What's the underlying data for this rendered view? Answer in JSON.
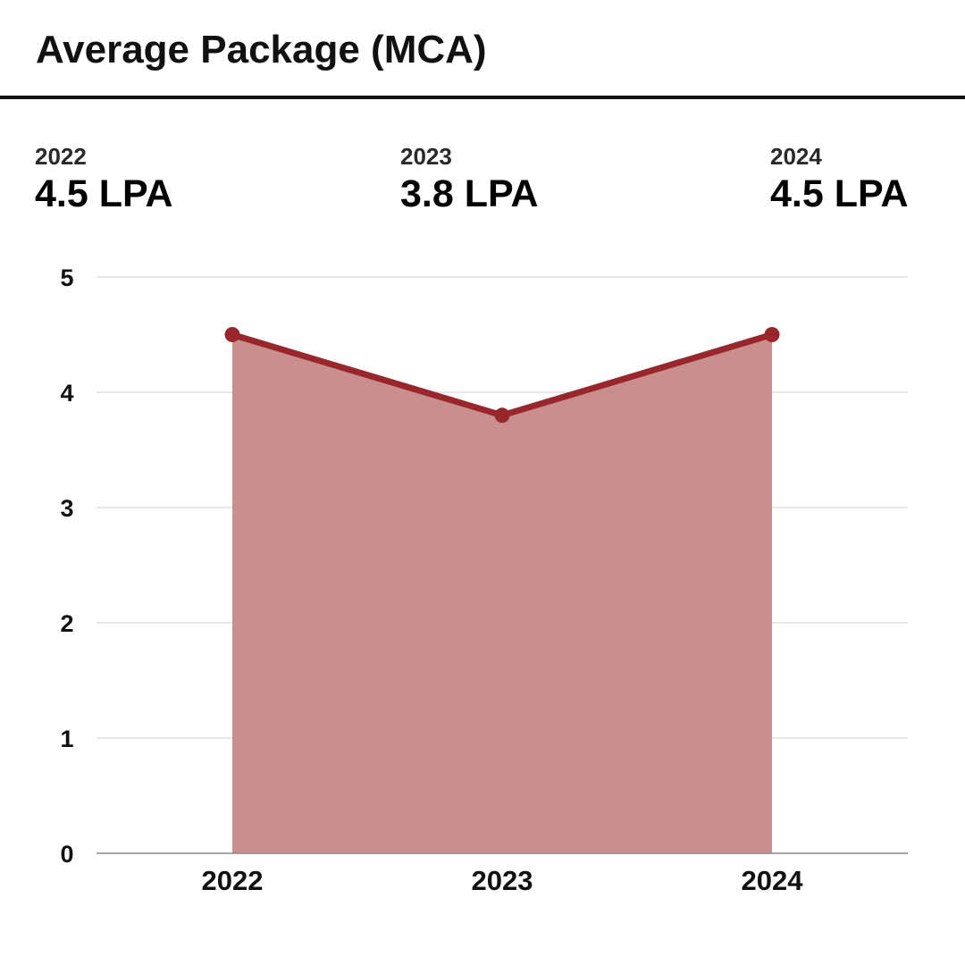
{
  "title": "Average Package (MCA)",
  "stats": [
    {
      "year": "2022",
      "value": "4.5 LPA"
    },
    {
      "year": "2023",
      "value": "3.8 LPA"
    },
    {
      "year": "2024",
      "value": "4.5 LPA"
    }
  ],
  "colors": {
    "line": "#98262a",
    "area": "#c98f8f",
    "grid": "#cfcfcf",
    "axis": "#888888",
    "text": "#111111"
  },
  "chart_data": {
    "type": "area",
    "title": "",
    "xlabel": "",
    "ylabel": "",
    "categories": [
      "2022",
      "2023",
      "2024"
    ],
    "series": [
      {
        "values": [
          4.5,
          3.8,
          4.5
        ]
      }
    ],
    "ylim": [
      0,
      5
    ],
    "yticks": [
      "0",
      "1",
      "2",
      "3",
      "4",
      "5"
    ],
    "grid": true,
    "legend": "none"
  }
}
